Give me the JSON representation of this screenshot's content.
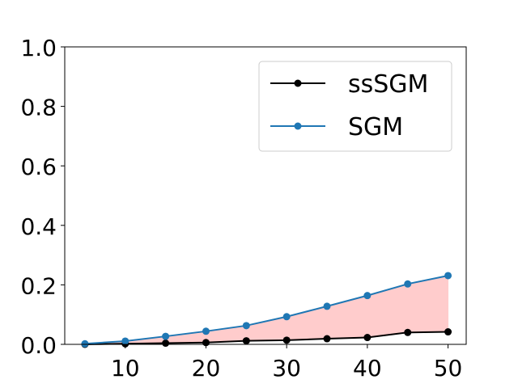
{
  "chart_data": {
    "type": "line",
    "title": "",
    "xlabel": "",
    "ylabel": "",
    "x": [
      5,
      10,
      15,
      20,
      25,
      30,
      35,
      40,
      45,
      50
    ],
    "xlim": [
      2.5,
      52.25
    ],
    "ylim": [
      0,
      1.0
    ],
    "x_ticks": [
      10,
      20,
      30,
      40,
      50
    ],
    "y_ticks": [
      0.0,
      0.2,
      0.4,
      0.6,
      0.8,
      1.0
    ],
    "x_tick_labels": [
      "10",
      "20",
      "30",
      "40",
      "50"
    ],
    "y_tick_labels": [
      "0.0",
      "0.2",
      "0.4",
      "0.6",
      "0.8",
      "1.0"
    ],
    "grid": false,
    "legend_position": "top-right",
    "series": [
      {
        "name": "ssSGM",
        "color": "#000000",
        "values": [
          0.0,
          0.002,
          0.004,
          0.006,
          0.012,
          0.014,
          0.019,
          0.023,
          0.04,
          0.042
        ]
      },
      {
        "name": "SGM",
        "color": "#1f77b4",
        "values": [
          0.002,
          0.011,
          0.027,
          0.044,
          0.063,
          0.093,
          0.128,
          0.164,
          0.203,
          0.231
        ]
      }
    ],
    "fill_between": {
      "from_series": "ssSGM",
      "to_series": "SGM",
      "color": "#ffcccc"
    }
  }
}
